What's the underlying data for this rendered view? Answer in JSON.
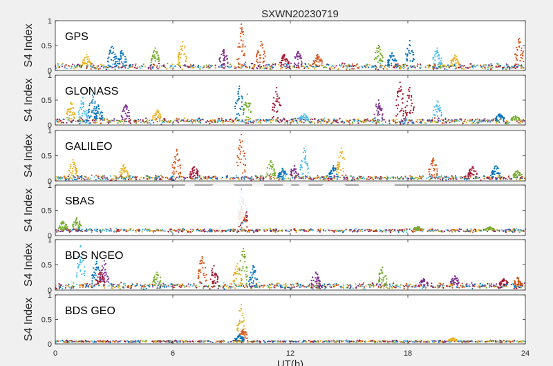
{
  "chart_data": {
    "type": "scatter",
    "title": "SXWN20230719",
    "xlabel": "UT(h)",
    "ylabel": "S4 Index",
    "xlim": [
      0,
      24
    ],
    "ylim": [
      0,
      1
    ],
    "xticks": [
      "0",
      "6",
      "12",
      "18",
      "24"
    ],
    "yticks": [
      "0",
      "0.5",
      "1"
    ],
    "grid": false,
    "watermark": "IONISE",
    "series_colors": [
      "#0072bd",
      "#d95319",
      "#edb120",
      "#7e2f8e",
      "#77ac30",
      "#4dbeee",
      "#a2142f"
    ],
    "panels": [
      {
        "name": "GPS",
        "baseline": 0.08,
        "spread": 0.05,
        "peaks": [
          [
            1.6,
            0.32,
            2
          ],
          [
            2.9,
            0.48,
            0
          ],
          [
            3.4,
            0.4,
            0
          ],
          [
            5.1,
            0.45,
            4
          ],
          [
            6.5,
            0.58,
            2
          ],
          [
            8.6,
            0.42,
            3
          ],
          [
            9.5,
            0.93,
            1
          ],
          [
            10.5,
            0.58,
            1
          ],
          [
            11.7,
            0.32,
            6
          ],
          [
            12.4,
            0.38,
            3
          ],
          [
            13.4,
            0.32,
            1
          ],
          [
            16.5,
            0.5,
            4
          ],
          [
            17.2,
            0.35,
            0
          ],
          [
            18.1,
            0.6,
            0
          ],
          [
            19.5,
            0.45,
            5
          ],
          [
            20.4,
            0.3,
            2
          ],
          [
            23.7,
            0.64,
            1
          ]
        ]
      },
      {
        "name": "GLONASS",
        "baseline": 0.08,
        "spread": 0.05,
        "peaks": [
          [
            0.8,
            0.45,
            2
          ],
          [
            1.4,
            0.55,
            5
          ],
          [
            1.9,
            0.6,
            0
          ],
          [
            2.2,
            0.4,
            0
          ],
          [
            3.6,
            0.4,
            3
          ],
          [
            5.2,
            0.3,
            2
          ],
          [
            9.4,
            0.78,
            0
          ],
          [
            9.8,
            0.62,
            4
          ],
          [
            11.3,
            0.75,
            6
          ],
          [
            12.7,
            0.22,
            5
          ],
          [
            16.5,
            0.5,
            3
          ],
          [
            17.6,
            0.86,
            6
          ],
          [
            18.1,
            0.75,
            6
          ],
          [
            19.5,
            0.48,
            5
          ],
          [
            22.7,
            0.22,
            0
          ],
          [
            23.5,
            0.18,
            4
          ]
        ]
      },
      {
        "name": "GALILEO",
        "baseline": 0.06,
        "spread": 0.04,
        "peaks": [
          [
            0.9,
            0.42,
            2
          ],
          [
            3.5,
            0.32,
            2
          ],
          [
            6.2,
            0.62,
            1
          ],
          [
            7.1,
            0.28,
            6
          ],
          [
            9.5,
            0.92,
            1
          ],
          [
            11.0,
            0.4,
            4
          ],
          [
            11.6,
            0.25,
            0
          ],
          [
            12.2,
            0.3,
            3
          ],
          [
            12.7,
            0.65,
            5
          ],
          [
            14.6,
            0.65,
            2
          ],
          [
            14.2,
            0.3,
            0
          ],
          [
            19.3,
            0.45,
            1
          ],
          [
            21.3,
            0.28,
            6
          ],
          [
            22.5,
            0.3,
            0
          ],
          [
            23.6,
            0.2,
            4
          ]
        ]
      },
      {
        "name": "SBAS",
        "baseline": 0.1,
        "spread": 0.03,
        "peaks": [
          [
            0.4,
            0.28,
            4
          ],
          [
            1.1,
            0.35,
            4
          ],
          [
            9.5,
            0.92,
            5
          ],
          [
            9.6,
            0.7,
            6
          ],
          [
            9.5,
            0.55,
            1
          ],
          [
            18.5,
            0.18,
            4
          ],
          [
            22.2,
            0.17,
            4
          ]
        ]
      },
      {
        "name": "BDS NGEO",
        "baseline": 0.08,
        "spread": 0.05,
        "peaks": [
          [
            1.3,
            0.88,
            5
          ],
          [
            2.1,
            0.62,
            0
          ],
          [
            2.5,
            0.58,
            3
          ],
          [
            2.3,
            0.35,
            6
          ],
          [
            5.2,
            0.35,
            4
          ],
          [
            7.5,
            0.66,
            1
          ],
          [
            8.1,
            0.48,
            6
          ],
          [
            9.3,
            0.52,
            2
          ],
          [
            9.6,
            0.82,
            4
          ],
          [
            10.1,
            0.48,
            0
          ],
          [
            13.3,
            0.35,
            3
          ],
          [
            16.7,
            0.45,
            4
          ],
          [
            18.8,
            0.22,
            3
          ],
          [
            20.4,
            0.28,
            3
          ],
          [
            22.9,
            0.22,
            6
          ],
          [
            23.6,
            0.25,
            1
          ]
        ]
      },
      {
        "name": "BDS GEO",
        "baseline": 0.05,
        "spread": 0.02,
        "peaks": [
          [
            9.5,
            0.8,
            2
          ],
          [
            9.6,
            0.3,
            1
          ],
          [
            9.4,
            0.18,
            0
          ],
          [
            20.3,
            0.12,
            2
          ]
        ]
      }
    ]
  }
}
